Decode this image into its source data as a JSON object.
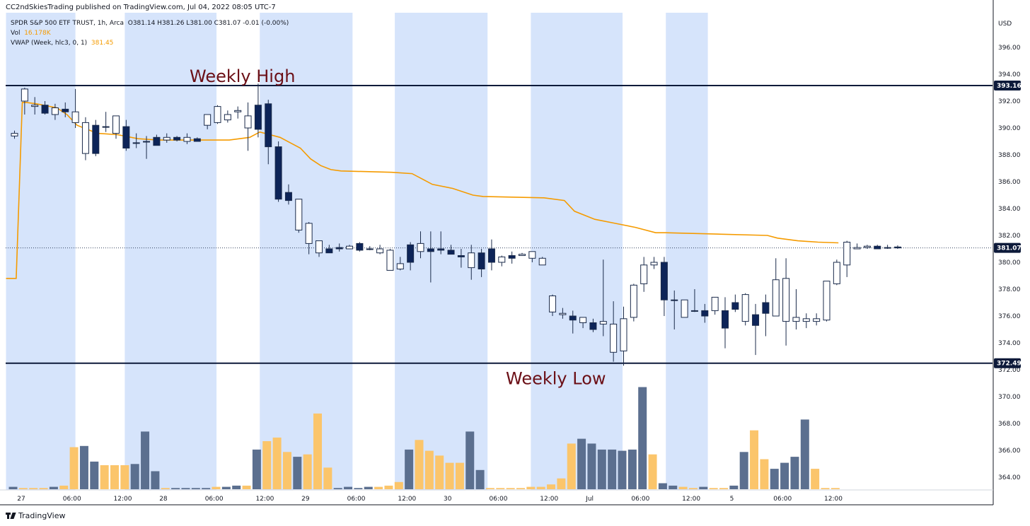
{
  "header": {
    "published": "CC2ndSkiesTrading published on TradingView.com, Jul 04, 2022 08:05 UTC-7"
  },
  "legend": {
    "symbol": "SPDR S&P 500 ETF TRUST, 1h, Arca",
    "ohlc": "O381.14  H381.26  L381.00  C381.07  -0.01 (-0.00%)",
    "vol_label": "Vol",
    "vol_value": "16.178K",
    "vwap_label": "VWAP (Week, hlc3, 0, 1)",
    "vwap_value": "381.45"
  },
  "brand": {
    "name": "TradingView"
  },
  "colors": {
    "session_shade": "#d6e4fb",
    "bull_body": "#ffffff",
    "bear_body": "#0d2458",
    "wick": "#1b2b4b",
    "vwap": "#f59b00",
    "vol_up": "#fbc56b",
    "vol_down": "#5b6f8f",
    "level_line": "#0d1a3a",
    "annotation": "#6b0f16"
  },
  "chart_data": {
    "type": "candlestick",
    "title": "SPDR S&P 500 ETF TRUST, 1h, Arca",
    "currency": "USD",
    "ylim": [
      362.8,
      397.8
    ],
    "y_ticks": [
      364,
      366,
      368,
      370,
      372,
      374,
      376,
      378,
      380,
      382,
      384,
      386,
      388,
      390,
      392,
      394,
      396
    ],
    "y_tick_labels": [
      "364.00",
      "366.00",
      "368.00",
      "370.00",
      "372.00",
      "374.00",
      "376.00",
      "378.00",
      "380.00",
      "382.00",
      "384.00",
      "386.00",
      "388.00",
      "390.00",
      "392.00",
      "394.00",
      "396.00"
    ],
    "x_ticks": [
      {
        "i": 1.5,
        "label": "27"
      },
      {
        "i": 6.5,
        "label": "06:00"
      },
      {
        "i": 11.5,
        "label": "12:00"
      },
      {
        "i": 15.5,
        "label": "28"
      },
      {
        "i": 20.5,
        "label": "06:00"
      },
      {
        "i": 25.5,
        "label": "12:00"
      },
      {
        "i": 29.5,
        "label": "29"
      },
      {
        "i": 34.5,
        "label": "06:00"
      },
      {
        "i": 39.5,
        "label": "12:00"
      },
      {
        "i": 43.5,
        "label": "30"
      },
      {
        "i": 48.5,
        "label": "06:00"
      },
      {
        "i": 53.5,
        "label": "12:00"
      },
      {
        "i": 57.5,
        "label": "Jul"
      },
      {
        "i": 62.5,
        "label": "06:00"
      },
      {
        "i": 67.5,
        "label": "12:00"
      },
      {
        "i": 71.5,
        "label": "5"
      },
      {
        "i": 76.5,
        "label": "06:00"
      },
      {
        "i": 81.5,
        "label": "12:00"
      }
    ],
    "session_bands": [
      [
        0.0,
        6.0
      ],
      [
        11.7,
        19.9
      ],
      [
        25.0,
        33.3
      ],
      [
        38.3,
        46.6
      ],
      [
        51.7,
        59.9
      ],
      [
        65.0,
        68.3
      ]
    ],
    "last_price": 381.07,
    "last_price_label": "381.07",
    "weekly_high": 393.16,
    "weekly_high_label": "393.16",
    "weekly_high_text": "Weekly High",
    "weekly_low": 372.49,
    "weekly_low_label": "372.49",
    "weekly_low_text": "Weekly Low",
    "candles": [
      {
        "o": 389.4,
        "h": 389.8,
        "l": 389.2,
        "c": 389.6
      },
      {
        "o": 392.0,
        "h": 393.0,
        "l": 391.0,
        "c": 392.9
      },
      {
        "o": 391.6,
        "h": 392.3,
        "l": 391.0,
        "c": 391.7
      },
      {
        "o": 391.7,
        "h": 392.0,
        "l": 391.0,
        "c": 391.1
      },
      {
        "o": 391.0,
        "h": 391.8,
        "l": 390.6,
        "c": 391.5
      },
      {
        "o": 391.4,
        "h": 391.9,
        "l": 390.8,
        "c": 391.2
      },
      {
        "o": 390.4,
        "h": 392.9,
        "l": 390.0,
        "c": 391.2
      },
      {
        "o": 388.1,
        "h": 390.8,
        "l": 387.6,
        "c": 390.4
      },
      {
        "o": 390.2,
        "h": 390.6,
        "l": 387.9,
        "c": 388.1
      },
      {
        "o": 390.1,
        "h": 391.2,
        "l": 389.7,
        "c": 390.1
      },
      {
        "o": 389.6,
        "h": 390.9,
        "l": 389.2,
        "c": 390.9
      },
      {
        "o": 390.1,
        "h": 390.6,
        "l": 388.3,
        "c": 388.5
      },
      {
        "o": 388.9,
        "h": 389.6,
        "l": 388.5,
        "c": 388.9
      },
      {
        "o": 389.0,
        "h": 389.4,
        "l": 387.7,
        "c": 389.0
      },
      {
        "o": 389.3,
        "h": 389.5,
        "l": 388.7,
        "c": 388.7
      },
      {
        "o": 389.1,
        "h": 389.6,
        "l": 388.9,
        "c": 389.3
      },
      {
        "o": 389.3,
        "h": 389.4,
        "l": 389.0,
        "c": 389.1
      },
      {
        "o": 389.0,
        "h": 389.6,
        "l": 388.8,
        "c": 389.3
      },
      {
        "o": 389.2,
        "h": 389.3,
        "l": 389.0,
        "c": 389.0
      },
      {
        "o": 390.2,
        "h": 391.0,
        "l": 389.9,
        "c": 391.0
      },
      {
        "o": 390.4,
        "h": 391.7,
        "l": 390.3,
        "c": 391.6
      },
      {
        "o": 390.6,
        "h": 391.3,
        "l": 390.4,
        "c": 391.0
      },
      {
        "o": 391.2,
        "h": 391.6,
        "l": 390.7,
        "c": 391.3
      },
      {
        "o": 390.0,
        "h": 391.9,
        "l": 388.3,
        "c": 390.9
      },
      {
        "o": 391.7,
        "h": 393.3,
        "l": 389.3,
        "c": 389.9
      },
      {
        "o": 391.8,
        "h": 392.1,
        "l": 387.3,
        "c": 388.6
      },
      {
        "o": 388.6,
        "h": 389.0,
        "l": 384.5,
        "c": 384.7
      },
      {
        "o": 385.2,
        "h": 385.8,
        "l": 384.3,
        "c": 384.6
      },
      {
        "o": 382.4,
        "h": 384.7,
        "l": 382.2,
        "c": 384.7
      },
      {
        "o": 381.4,
        "h": 383.0,
        "l": 380.6,
        "c": 382.9
      },
      {
        "o": 380.7,
        "h": 381.6,
        "l": 380.4,
        "c": 381.6
      },
      {
        "o": 381.0,
        "h": 381.3,
        "l": 380.9,
        "c": 380.7
      },
      {
        "o": 381.1,
        "h": 381.4,
        "l": 380.8,
        "c": 381.0
      },
      {
        "o": 381.0,
        "h": 381.3,
        "l": 381.0,
        "c": 381.2
      },
      {
        "o": 381.4,
        "h": 381.5,
        "l": 380.8,
        "c": 380.9
      },
      {
        "o": 381.0,
        "h": 381.2,
        "l": 380.9,
        "c": 381.0
      },
      {
        "o": 380.7,
        "h": 381.3,
        "l": 380.6,
        "c": 381.0
      },
      {
        "o": 379.4,
        "h": 381.0,
        "l": 379.4,
        "c": 380.9
      },
      {
        "o": 379.5,
        "h": 380.4,
        "l": 379.4,
        "c": 379.9
      },
      {
        "o": 381.3,
        "h": 381.5,
        "l": 379.4,
        "c": 380.0
      },
      {
        "o": 380.8,
        "h": 382.3,
        "l": 380.3,
        "c": 381.4
      },
      {
        "o": 381.0,
        "h": 382.3,
        "l": 378.5,
        "c": 380.8
      },
      {
        "o": 381.0,
        "h": 382.3,
        "l": 380.6,
        "c": 380.9
      },
      {
        "o": 380.9,
        "h": 381.3,
        "l": 380.7,
        "c": 380.6
      },
      {
        "o": 380.5,
        "h": 381.0,
        "l": 379.6,
        "c": 380.4
      },
      {
        "o": 379.6,
        "h": 381.3,
        "l": 378.7,
        "c": 380.7
      },
      {
        "o": 380.7,
        "h": 381.0,
        "l": 378.9,
        "c": 379.5
      },
      {
        "o": 381.0,
        "h": 381.7,
        "l": 379.4,
        "c": 380.0
      },
      {
        "o": 380.0,
        "h": 380.5,
        "l": 379.7,
        "c": 380.4
      },
      {
        "o": 380.5,
        "h": 380.8,
        "l": 379.9,
        "c": 380.3
      },
      {
        "o": 380.5,
        "h": 380.7,
        "l": 380.5,
        "c": 380.6
      },
      {
        "o": 380.3,
        "h": 380.8,
        "l": 380.0,
        "c": 380.8
      },
      {
        "o": 379.8,
        "h": 380.4,
        "l": 379.8,
        "c": 380.3
      },
      {
        "o": 376.3,
        "h": 377.6,
        "l": 376.0,
        "c": 377.5
      },
      {
        "o": 376.1,
        "h": 376.6,
        "l": 375.8,
        "c": 376.2
      },
      {
        "o": 376.0,
        "h": 376.4,
        "l": 374.7,
        "c": 375.7
      },
      {
        "o": 375.5,
        "h": 375.9,
        "l": 375.1,
        "c": 375.9
      },
      {
        "o": 375.5,
        "h": 375.8,
        "l": 374.8,
        "c": 375.0
      },
      {
        "o": 375.4,
        "h": 380.2,
        "l": 374.5,
        "c": 375.6
      },
      {
        "o": 373.3,
        "h": 377.1,
        "l": 372.6,
        "c": 375.4
      },
      {
        "o": 373.4,
        "h": 376.7,
        "l": 372.3,
        "c": 375.8
      },
      {
        "o": 375.9,
        "h": 378.4,
        "l": 375.6,
        "c": 378.3
      },
      {
        "o": 378.4,
        "h": 380.4,
        "l": 377.8,
        "c": 379.8
      },
      {
        "o": 379.8,
        "h": 380.4,
        "l": 379.5,
        "c": 380.0
      },
      {
        "o": 380.0,
        "h": 380.4,
        "l": 376.0,
        "c": 377.2
      },
      {
        "o": 377.2,
        "h": 377.9,
        "l": 375.0,
        "c": 377.2
      },
      {
        "o": 375.9,
        "h": 377.2,
        "l": 376.2,
        "c": 377.2
      },
      {
        "o": 376.4,
        "h": 378.0,
        "l": 376.3,
        "c": 376.4
      },
      {
        "o": 376.4,
        "h": 376.9,
        "l": 375.5,
        "c": 376.0
      },
      {
        "o": 376.4,
        "h": 377.4,
        "l": 376.1,
        "c": 377.4
      },
      {
        "o": 376.4,
        "h": 377.4,
        "l": 373.6,
        "c": 375.1
      },
      {
        "o": 377.0,
        "h": 377.6,
        "l": 376.3,
        "c": 376.5
      },
      {
        "o": 375.6,
        "h": 377.7,
        "l": 375.3,
        "c": 377.6
      },
      {
        "o": 376.1,
        "h": 376.9,
        "l": 373.1,
        "c": 375.3
      },
      {
        "o": 377.0,
        "h": 377.6,
        "l": 374.5,
        "c": 376.2
      },
      {
        "o": 376.0,
        "h": 380.3,
        "l": 376.0,
        "c": 378.7
      },
      {
        "o": 375.6,
        "h": 380.3,
        "l": 373.8,
        "c": 378.8
      },
      {
        "o": 375.6,
        "h": 378.0,
        "l": 375.0,
        "c": 375.9
      },
      {
        "o": 375.6,
        "h": 376.2,
        "l": 375.1,
        "c": 375.8
      },
      {
        "o": 375.6,
        "h": 376.2,
        "l": 375.3,
        "c": 375.8
      },
      {
        "o": 375.7,
        "h": 378.6,
        "l": 375.6,
        "c": 378.6
      },
      {
        "o": 378.4,
        "h": 380.2,
        "l": 378.3,
        "c": 380.0
      },
      {
        "o": 379.8,
        "h": 381.6,
        "l": 378.9,
        "c": 381.5
      },
      {
        "o": 381.0,
        "h": 381.4,
        "l": 381.0,
        "c": 381.1
      },
      {
        "o": 381.1,
        "h": 381.3,
        "l": 381.0,
        "c": 381.2
      },
      {
        "o": 381.2,
        "h": 381.3,
        "l": 381.0,
        "c": 381.0
      },
      {
        "o": 381.1,
        "h": 381.3,
        "l": 381.0,
        "c": 381.1
      },
      {
        "o": 381.14,
        "h": 381.26,
        "l": 381.0,
        "c": 381.07
      }
    ],
    "candle_x_start": 0,
    "candle_step": 0.1143,
    "vwap": [
      [
        0,
        378.8
      ],
      [
        1,
        378.8
      ],
      [
        1.6,
        391.9
      ],
      [
        2,
        391.9
      ],
      [
        3,
        391.8
      ],
      [
        5,
        391.5
      ],
      [
        6,
        391.0
      ],
      [
        7,
        390.2
      ],
      [
        8,
        389.9
      ],
      [
        9,
        389.6
      ],
      [
        11,
        389.5
      ],
      [
        13,
        389.2
      ],
      [
        15,
        389.1
      ],
      [
        20,
        389.1
      ],
      [
        22,
        389.1
      ],
      [
        24,
        389.3
      ],
      [
        25,
        389.7
      ],
      [
        26,
        389.5
      ],
      [
        27,
        389.3
      ],
      [
        28,
        388.9
      ],
      [
        29,
        388.5
      ],
      [
        30,
        387.7
      ],
      [
        31,
        387.2
      ],
      [
        32,
        386.9
      ],
      [
        33,
        386.8
      ],
      [
        38,
        386.7
      ],
      [
        40,
        386.6
      ],
      [
        41,
        386.2
      ],
      [
        42,
        385.8
      ],
      [
        44,
        385.5
      ],
      [
        46,
        385.0
      ],
      [
        47,
        384.9
      ],
      [
        53,
        384.8
      ],
      [
        55,
        384.6
      ],
      [
        56,
        383.8
      ],
      [
        58,
        383.2
      ],
      [
        60,
        382.9
      ],
      [
        62,
        382.6
      ],
      [
        64,
        382.2
      ],
      [
        65,
        382.2
      ],
      [
        70,
        382.1
      ],
      [
        75,
        382.0
      ],
      [
        76,
        381.8
      ],
      [
        78,
        381.6
      ],
      [
        80,
        381.5
      ],
      [
        82,
        381.45
      ]
    ],
    "volume_scale_max": 100,
    "volumes": [
      {
        "v": 2,
        "up": false
      },
      {
        "v": 1,
        "up": true
      },
      {
        "v": 1,
        "up": true
      },
      {
        "v": 1,
        "up": true
      },
      {
        "v": 2,
        "up": false
      },
      {
        "v": 3,
        "up": true
      },
      {
        "v": 35,
        "up": true
      },
      {
        "v": 36,
        "up": false
      },
      {
        "v": 23,
        "up": false
      },
      {
        "v": 20,
        "up": true
      },
      {
        "v": 20,
        "up": true
      },
      {
        "v": 20,
        "up": true
      },
      {
        "v": 21,
        "up": false
      },
      {
        "v": 48,
        "up": false
      },
      {
        "v": 15,
        "up": false
      },
      {
        "v": 1,
        "up": true
      },
      {
        "v": 1,
        "up": false
      },
      {
        "v": 1,
        "up": false
      },
      {
        "v": 1,
        "up": false
      },
      {
        "v": 1,
        "up": false
      },
      {
        "v": 2,
        "up": true
      },
      {
        "v": 2,
        "up": false
      },
      {
        "v": 3,
        "up": false
      },
      {
        "v": 3,
        "up": true
      },
      {
        "v": 33,
        "up": false
      },
      {
        "v": 40,
        "up": true
      },
      {
        "v": 43,
        "up": true
      },
      {
        "v": 31,
        "up": true
      },
      {
        "v": 27,
        "up": false
      },
      {
        "v": 29,
        "up": true
      },
      {
        "v": 63,
        "up": true
      },
      {
        "v": 18,
        "up": true
      },
      {
        "v": 1,
        "up": false
      },
      {
        "v": 2,
        "up": false
      },
      {
        "v": 1,
        "up": false
      },
      {
        "v": 2,
        "up": false
      },
      {
        "v": 2,
        "up": true
      },
      {
        "v": 3,
        "up": true
      },
      {
        "v": 6,
        "up": true
      },
      {
        "v": 33,
        "up": false
      },
      {
        "v": 41,
        "up": true
      },
      {
        "v": 32,
        "up": true
      },
      {
        "v": 28,
        "up": true
      },
      {
        "v": 22,
        "up": true
      },
      {
        "v": 22,
        "up": true
      },
      {
        "v": 48,
        "up": false
      },
      {
        "v": 16,
        "up": false
      },
      {
        "v": 1,
        "up": true
      },
      {
        "v": 1,
        "up": true
      },
      {
        "v": 1,
        "up": true
      },
      {
        "v": 1,
        "up": true
      },
      {
        "v": 2,
        "up": true
      },
      {
        "v": 2,
        "up": true
      },
      {
        "v": 4,
        "up": true
      },
      {
        "v": 9,
        "up": true
      },
      {
        "v": 38,
        "up": true
      },
      {
        "v": 42,
        "up": false
      },
      {
        "v": 38,
        "up": false
      },
      {
        "v": 33,
        "up": false
      },
      {
        "v": 33,
        "up": false
      },
      {
        "v": 32,
        "up": false
      },
      {
        "v": 33,
        "up": false
      },
      {
        "v": 85,
        "up": false
      },
      {
        "v": 29,
        "up": true
      },
      {
        "v": 5,
        "up": false
      },
      {
        "v": 3,
        "up": false
      },
      {
        "v": 2,
        "up": true
      },
      {
        "v": 1,
        "up": true
      },
      {
        "v": 2,
        "up": false
      },
      {
        "v": 1,
        "up": true
      },
      {
        "v": 1,
        "up": true
      },
      {
        "v": 3,
        "up": false
      },
      {
        "v": 31,
        "up": false
      },
      {
        "v": 49,
        "up": true
      },
      {
        "v": 25,
        "up": true
      },
      {
        "v": 17,
        "up": false
      },
      {
        "v": 22,
        "up": false
      },
      {
        "v": 27,
        "up": false
      },
      {
        "v": 58,
        "up": false
      },
      {
        "v": 17,
        "up": true
      },
      {
        "v": 1,
        "up": true
      },
      {
        "v": 1,
        "up": true
      }
    ]
  }
}
